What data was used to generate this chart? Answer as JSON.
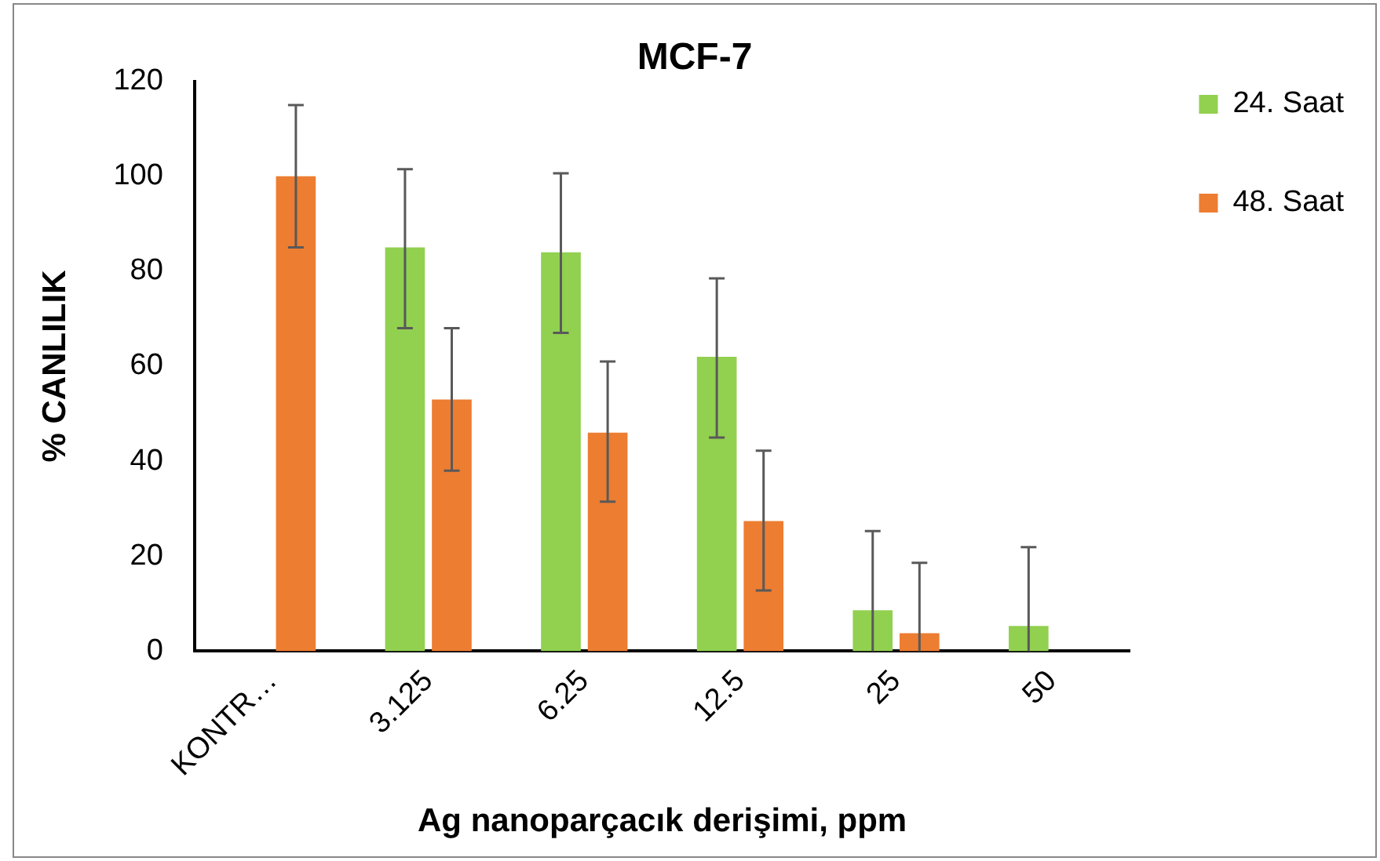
{
  "chart_data": {
    "type": "bar",
    "title": "MCF-7",
    "xlabel": "Ag nanoparçacık derişimi, ppm",
    "ylabel": "% CANLILIK",
    "categories": [
      "KONTR…",
      "3.125",
      "6.25",
      "12.5",
      "25",
      "50"
    ],
    "series": [
      {
        "name": "24. Saat",
        "color": "#92d050",
        "values": [
          null,
          85,
          84,
          62,
          8.6,
          5.3
        ],
        "errors": [
          null,
          [
            68,
            101.5
          ],
          [
            67,
            100.6
          ],
          [
            45,
            78.5
          ],
          [
            0,
            25.3
          ],
          [
            0,
            21.9
          ]
        ]
      },
      {
        "name": "48. Saat",
        "color": "#ed7d31",
        "values": [
          100,
          53,
          46,
          27.4,
          3.8,
          null
        ],
        "errors": [
          [
            85,
            115
          ],
          [
            38,
            68
          ],
          [
            31.5,
            61
          ],
          [
            12.8,
            42.2
          ],
          [
            0,
            18.6
          ],
          null
        ]
      }
    ],
    "ylim": [
      0,
      120
    ],
    "yticks": [
      0,
      20,
      40,
      60,
      80,
      100,
      120
    ],
    "grid": false,
    "legend": "top right"
  }
}
